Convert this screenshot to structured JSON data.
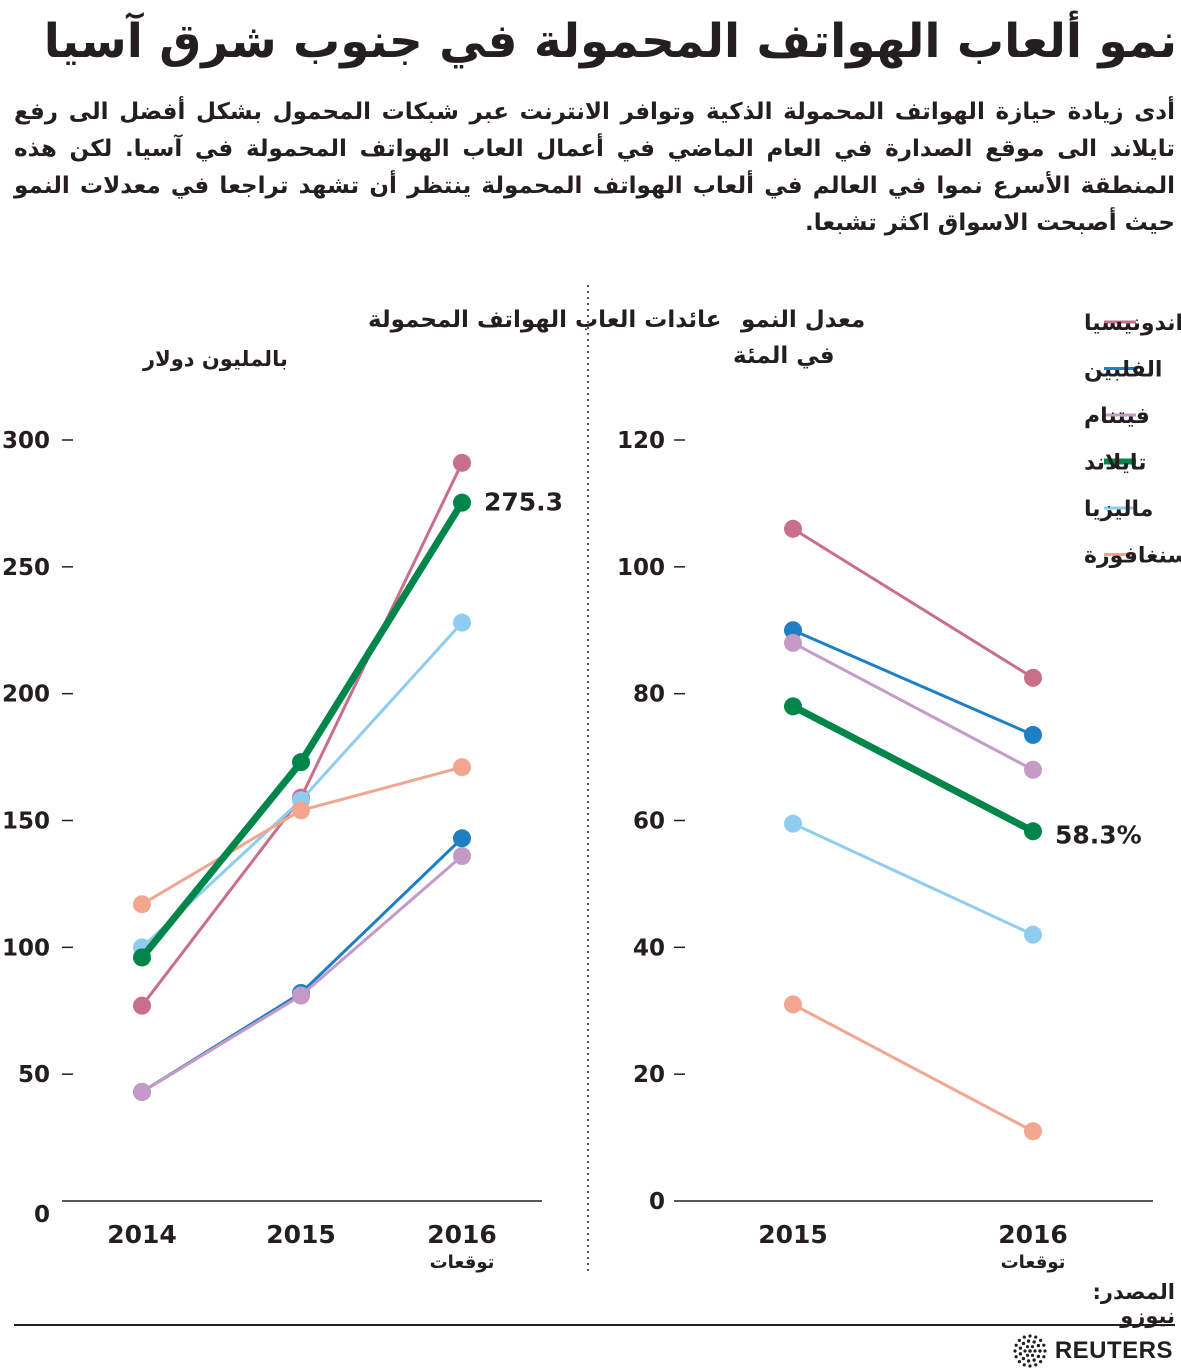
{
  "title": "نمو ألعاب الهواتف المحمولة في جنوب شرق آسيا",
  "description": "أدى زيادة حيازة الهواتف المحمولة الذكية وتوافر الانترنت عبر شبكات المحمول بشكل أفضل الى رفع تايلاند الى موقع الصدارة في العام الماضي في أعمال العاب الهواتف المحمولة في آسيا. لكن هذه المنطقة الأسرع نموا في العالم في ألعاب الهواتف المحمولة ينتظر أن تشهد تراجعا في معدلات النمو حيث أصبحت الاسواق اكثر تشبعا.",
  "legend": [
    {
      "label": "اندونيسيا",
      "color": "#c86f8a"
    },
    {
      "label": "الفلبين",
      "color": "#1f7fc4"
    },
    {
      "label": "فيتنام",
      "color": "#c49ac6"
    },
    {
      "label": "تايلاند",
      "color": "#00854a"
    },
    {
      "label": "ماليزيا",
      "color": "#8fcdf0"
    },
    {
      "label": "سنغافورة",
      "color": "#f2a68f"
    }
  ],
  "chart_data": [
    {
      "type": "line",
      "title": "عائدات العاب الهواتف المحمولة",
      "subtitle": "بالمليون دولار",
      "categories": [
        "2014",
        "2015",
        "2016"
      ],
      "category_note": "توقعات",
      "ylim": [
        0,
        300
      ],
      "yticks": [
        0,
        50,
        100,
        150,
        200,
        250,
        300
      ],
      "series": [
        {
          "name": "اندونيسيا",
          "values": [
            77,
            159,
            291
          ]
        },
        {
          "name": "الفلبين",
          "values": [
            43,
            82,
            143
          ]
        },
        {
          "name": "فيتنام",
          "values": [
            43,
            81,
            136
          ]
        },
        {
          "name": "تايلاند",
          "values": [
            96,
            173,
            275.3
          ],
          "highlight": true
        },
        {
          "name": "ماليزيا",
          "values": [
            100,
            158,
            228
          ]
        },
        {
          "name": "سنغافورة",
          "values": [
            117,
            154,
            171
          ]
        }
      ],
      "annotation": "275.3"
    },
    {
      "type": "line",
      "title": "معدل النمو في المئة",
      "categories": [
        "2015",
        "2016"
      ],
      "category_note": "توقعات",
      "ylim": [
        0,
        120
      ],
      "yticks": [
        0,
        20,
        40,
        60,
        80,
        100,
        120
      ],
      "series": [
        {
          "name": "اندونيسيا",
          "values": [
            106,
            82.5
          ]
        },
        {
          "name": "الفلبين",
          "values": [
            90,
            73.5
          ]
        },
        {
          "name": "فيتنام",
          "values": [
            88,
            68
          ]
        },
        {
          "name": "تايلاند",
          "values": [
            78,
            58.3
          ],
          "highlight": true
        },
        {
          "name": "ماليزيا",
          "values": [
            59.5,
            42
          ]
        },
        {
          "name": "سنغافورة",
          "values": [
            31,
            11
          ]
        }
      ],
      "annotation": "58.3%"
    }
  ],
  "source": {
    "label": "المصدر:",
    "name": "نيوزو"
  },
  "brand": "REUTERS"
}
